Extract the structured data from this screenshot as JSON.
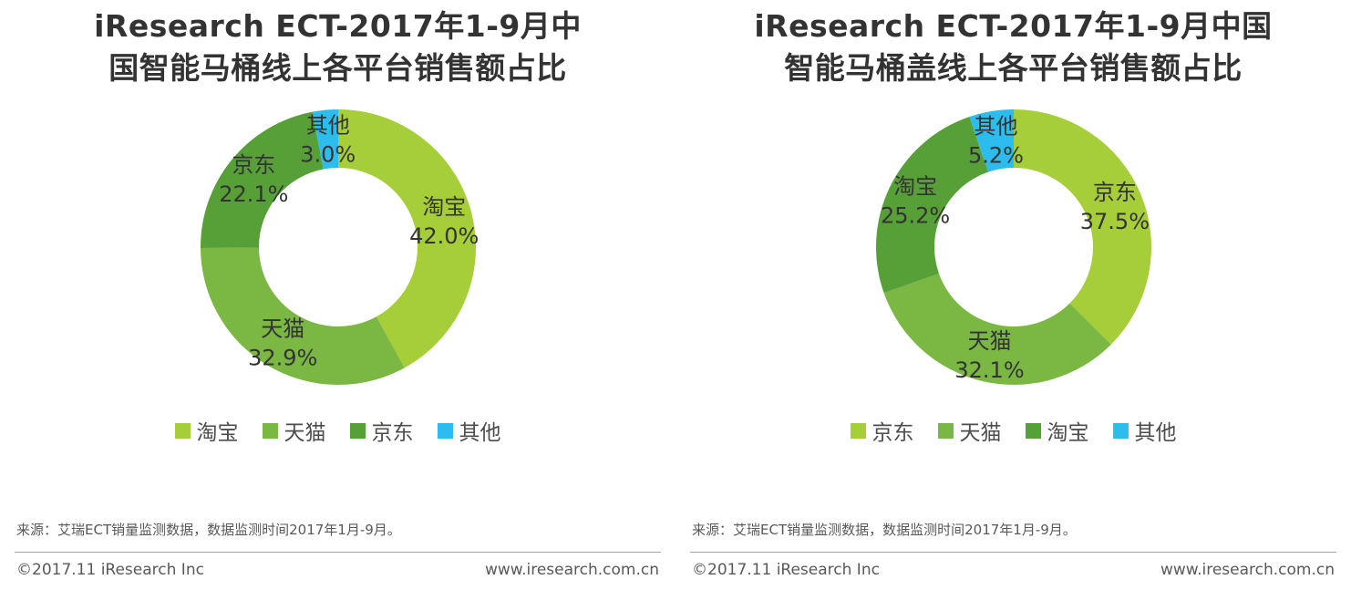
{
  "palette": [
    "#a6ce39",
    "#7ab843",
    "#57a038",
    "#2cbdee"
  ],
  "text_color": "#333333",
  "chart_data": [
    {
      "type": "pie",
      "donut": true,
      "title": "iResearch ECT-2017年1-9月中国智能马桶线上各平台销售额占比",
      "title_lines": [
        "iResearch ECT-2017年1-9月中",
        "国智能马桶线上各平台销售额占比"
      ],
      "categories": [
        "淘宝",
        "天猫",
        "京东",
        "其他"
      ],
      "values": [
        42.0,
        32.9,
        22.1,
        3.0
      ],
      "value_labels": [
        "42.0%",
        "32.9%",
        "22.1%",
        "3.0%"
      ],
      "unit": "%",
      "start_angle": 0,
      "direction": "clockwise",
      "legend_position": "bottom",
      "legend": [
        "淘宝",
        "天猫",
        "京东",
        "其他"
      ]
    },
    {
      "type": "pie",
      "donut": true,
      "title": "iResearch ECT-2017年1-9月中国智能马桶盖线上各平台销售额占比",
      "title_lines": [
        "iResearch ECT-2017年1-9月中国",
        "智能马桶盖线上各平台销售额占比"
      ],
      "categories": [
        "京东",
        "天猫",
        "淘宝",
        "其他"
      ],
      "values": [
        37.5,
        32.1,
        25.2,
        5.2
      ],
      "value_labels": [
        "37.5%",
        "32.1%",
        "25.2%",
        "5.2%"
      ],
      "unit": "%",
      "start_angle": 0,
      "direction": "clockwise",
      "legend_position": "bottom",
      "legend": [
        "京东",
        "天猫",
        "淘宝",
        "其他"
      ]
    }
  ],
  "panels": [
    {
      "source": "来源：艾瑞ECT销量监测数据，数据监测时间2017年1月-9月。",
      "footer_left": "©2017.11 iResearch Inc",
      "footer_right": "www.iresearch.com.cn"
    },
    {
      "source": "来源：艾瑞ECT销量监测数据，数据监测时间2017年1月-9月。",
      "footer_left": "©2017.11 iResearch Inc",
      "footer_right": "www.iresearch.com.cn"
    }
  ]
}
